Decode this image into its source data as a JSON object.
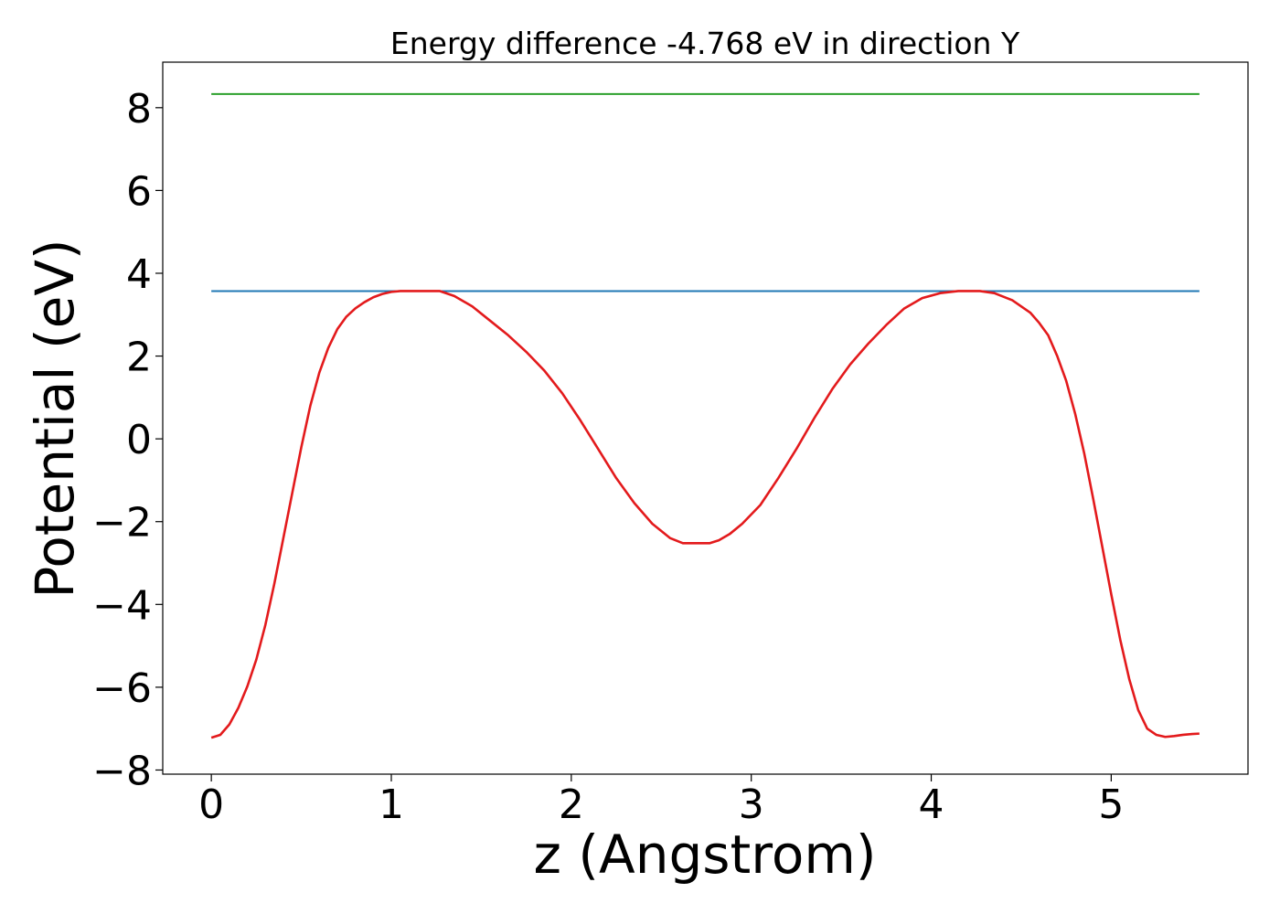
{
  "chart_data": {
    "type": "line",
    "title": "Energy difference -4.768 eV in direction Y",
    "xlabel": "z (Angstrom)",
    "ylabel": "Potential (eV)",
    "xlim": [
      -0.27,
      5.76
    ],
    "ylim": [
      -8.1,
      9.1
    ],
    "xticks": [
      0,
      1,
      2,
      3,
      4,
      5
    ],
    "yticks": [
      8,
      6,
      4,
      2,
      0,
      -2,
      -4,
      -6,
      -8
    ],
    "xtick_labels": [
      "0",
      "1",
      "2",
      "3",
      "4",
      "5"
    ],
    "ytick_labels": [
      "8",
      "6",
      "4",
      "2",
      "0",
      "−2",
      "−4",
      "−6",
      "−8"
    ],
    "grid": false,
    "series": [
      {
        "color": "#2ca02c",
        "x": [
          0,
          5.49
        ],
        "y": [
          8.33,
          8.33
        ]
      },
      {
        "color": "#1f77b4",
        "x": [
          0,
          5.49
        ],
        "y": [
          3.57,
          3.57
        ]
      },
      {
        "color": "#e31a1c",
        "x": [
          0,
          0.05,
          0.1,
          0.15,
          0.2,
          0.25,
          0.3,
          0.35,
          0.4,
          0.45,
          0.5,
          0.55,
          0.6,
          0.65,
          0.7,
          0.75,
          0.8,
          0.85,
          0.9,
          0.95,
          1.0,
          1.05,
          1.1,
          1.15,
          1.2,
          1.27,
          1.35,
          1.45,
          1.55,
          1.65,
          1.75,
          1.85,
          1.95,
          2.05,
          2.15,
          2.25,
          2.35,
          2.45,
          2.55,
          2.62,
          2.68,
          2.72,
          2.77,
          2.82,
          2.88,
          2.95,
          3.05,
          3.15,
          3.25,
          3.35,
          3.45,
          3.55,
          3.65,
          3.75,
          3.85,
          3.95,
          4.05,
          4.15,
          4.27,
          4.35,
          4.45,
          4.55,
          4.6,
          4.65,
          4.7,
          4.75,
          4.8,
          4.85,
          4.9,
          4.95,
          5.0,
          5.05,
          5.1,
          5.15,
          5.2,
          5.25,
          5.3,
          5.35,
          5.4,
          5.45,
          5.49
        ],
        "y": [
          -7.22,
          -7.15,
          -6.9,
          -6.5,
          -5.98,
          -5.33,
          -4.5,
          -3.5,
          -2.4,
          -1.3,
          -0.2,
          0.8,
          1.6,
          2.2,
          2.65,
          2.95,
          3.15,
          3.3,
          3.42,
          3.5,
          3.55,
          3.57,
          3.57,
          3.57,
          3.57,
          3.57,
          3.45,
          3.2,
          2.85,
          2.5,
          2.1,
          1.65,
          1.1,
          0.45,
          -0.25,
          -0.95,
          -1.55,
          -2.05,
          -2.4,
          -2.52,
          -2.52,
          -2.52,
          -2.52,
          -2.45,
          -2.3,
          -2.05,
          -1.6,
          -0.95,
          -0.25,
          0.5,
          1.2,
          1.8,
          2.3,
          2.75,
          3.15,
          3.4,
          3.52,
          3.57,
          3.57,
          3.52,
          3.35,
          3.05,
          2.8,
          2.5,
          2.0,
          1.4,
          0.6,
          -0.35,
          -1.45,
          -2.6,
          -3.75,
          -4.85,
          -5.8,
          -6.55,
          -7.0,
          -7.15,
          -7.2,
          -7.18,
          -7.15,
          -7.13,
          -7.12
        ]
      }
    ]
  }
}
